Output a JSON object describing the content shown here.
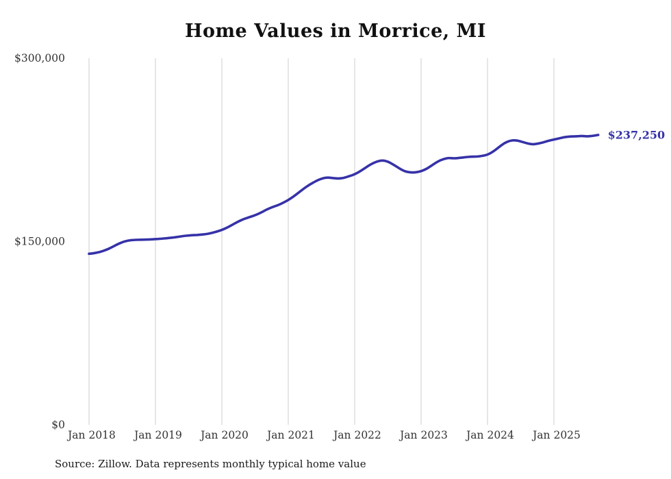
{
  "title": "Home Values in Morrice, MI",
  "source_note": "Source: Zillow. Data represents monthly typical home value",
  "colors": {
    "line": "#3632a8",
    "grid": "#cccccc",
    "axis_text": "#333333",
    "end_label": "#3632a8"
  },
  "chart_data": {
    "type": "line",
    "title": "Home Values in Morrice, MI",
    "xlabel": "",
    "ylabel": "",
    "ylim": [
      0,
      300000
    ],
    "grid": "vertical-only",
    "legend": "none",
    "y_tick_labels": [
      "$0",
      "$150,000",
      "$300,000"
    ],
    "y_tick_values": [
      0,
      150000,
      300000
    ],
    "x_tick_labels": [
      "Jan 2018",
      "Jan 2019",
      "Jan 2020",
      "Jan 2021",
      "Jan 2022",
      "Jan 2023",
      "Jan 2024",
      "Jan 2025"
    ],
    "x_start_month": "2018-01",
    "x_end_month": "2025-09",
    "end_annotation": "$237,250",
    "end_value": 237250,
    "values": [
      140000,
      140500,
      141500,
      143000,
      145000,
      147500,
      149500,
      150800,
      151300,
      151500,
      151500,
      151700,
      152000,
      152300,
      152700,
      153200,
      153800,
      154500,
      155000,
      155300,
      155500,
      156000,
      156800,
      158000,
      159500,
      161500,
      164000,
      166500,
      168500,
      170000,
      171500,
      173500,
      176000,
      178000,
      179500,
      181500,
      184000,
      187000,
      190500,
      194000,
      197000,
      199500,
      201500,
      202500,
      202000,
      201500,
      202000,
      203500,
      205000,
      207500,
      210500,
      213500,
      215500,
      216500,
      215500,
      213000,
      210000,
      207500,
      206500,
      206500,
      207500,
      209500,
      212500,
      215500,
      217500,
      218500,
      218000,
      218500,
      219000,
      219500,
      219500,
      220000,
      221000,
      223500,
      227000,
      230500,
      232500,
      233000,
      232000,
      230500,
      229500,
      230000,
      231000,
      232500,
      233500,
      234500,
      235500,
      236000,
      236000,
      236500,
      236000,
      236500,
      237250
    ]
  }
}
